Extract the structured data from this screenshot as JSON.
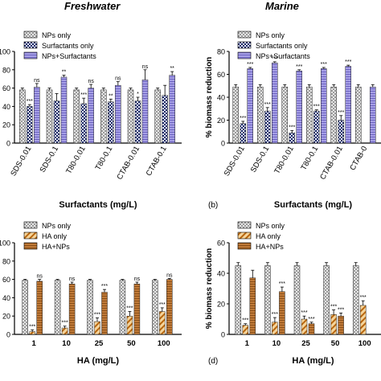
{
  "column_titles": {
    "left": "Freshwater",
    "right": "Marine"
  },
  "colors": {
    "fill_a": "#cfcfcf",
    "fill_b_dark": "#2a3a7a",
    "fill_c": "#8c84d6",
    "fill_d_dark": "#c0702a",
    "fill_e": "#b06a2e"
  },
  "chart_data": [
    {
      "type": "bar",
      "panel": "a",
      "ylabel": "",
      "xlabel": "Surfactants (mg/L)",
      "panel_label": "",
      "categories": [
        "SDS-0.01",
        "SDS-0.1",
        "T80-0.01",
        "T80-0.1",
        "CTAB-0.01",
        "CTAB-0.1"
      ],
      "ylim": [
        0,
        100
      ],
      "yticks": [
        "0",
        "20",
        "40",
        "60",
        "80",
        "100"
      ],
      "legend": [
        "NPs only",
        "Surfactants only",
        "NPs+Surfactants"
      ],
      "series": [
        {
          "name": "NPs only",
          "values": [
            58,
            58,
            58,
            58,
            58,
            58
          ],
          "errors": [
            2,
            2,
            2,
            2,
            2,
            2
          ]
        },
        {
          "name": "Surfactants only",
          "values": [
            40,
            46,
            43,
            45,
            46,
            52
          ],
          "errors": [
            2,
            8,
            6,
            3,
            4,
            11
          ]
        },
        {
          "name": "NPs+Surfactants",
          "values": [
            61,
            72,
            60,
            63,
            69,
            74
          ],
          "errors": [
            4,
            2,
            4,
            4,
            11,
            4
          ]
        }
      ],
      "annotations": [
        [
          "",
          "***",
          "ns"
        ],
        [
          "",
          "",
          "**"
        ],
        [
          "",
          "***",
          "ns"
        ],
        [
          "",
          "**",
          "ns"
        ],
        [
          "",
          "*",
          "ns"
        ],
        [
          "",
          "",
          "**"
        ]
      ]
    },
    {
      "type": "bar",
      "panel": "b",
      "ylabel": "% biomass reduction",
      "xlabel": "Surfactants (mg/L)",
      "panel_label": "(b)",
      "categories": [
        "SDS-0.01",
        "SDS-0.1",
        "T80-0.01",
        "T80-0.1",
        "CTAB-0.01",
        "CTAB-0"
      ],
      "ylim": [
        0,
        80
      ],
      "yticks": [
        "0",
        "20",
        "40",
        "60",
        "80"
      ],
      "legend": [
        "NPs only",
        "Surfactants only",
        "NPs+Surfactants"
      ],
      "series": [
        {
          "name": "NPs only",
          "values": [
            49,
            49,
            49,
            49,
            49,
            49
          ],
          "errors": [
            2,
            2,
            2,
            2,
            2,
            2
          ]
        },
        {
          "name": "Surfactants only",
          "values": [
            17,
            28,
            9,
            28,
            20,
            null
          ],
          "errors": [
            2,
            3,
            2,
            1,
            4,
            null
          ]
        },
        {
          "name": "NPs+Surfactants",
          "values": [
            65,
            70,
            63,
            65,
            67,
            49
          ],
          "errors": [
            1,
            1,
            1,
            1,
            1,
            2
          ]
        }
      ],
      "annotations": [
        [
          "",
          "***",
          "***"
        ],
        [
          "",
          "***",
          "***"
        ],
        [
          "",
          "***",
          "***"
        ],
        [
          "",
          "***",
          "***"
        ],
        [
          "",
          "***",
          "***"
        ],
        [
          "",
          "",
          ""
        ]
      ]
    },
    {
      "type": "bar",
      "panel": "c",
      "ylabel": "",
      "xlabel": "HA (mg/L)",
      "panel_label": "",
      "categories": [
        "1",
        "10",
        "25",
        "50",
        "100"
      ],
      "ylim": [
        0,
        100
      ],
      "yticks": [
        "0",
        "20",
        "40",
        "60",
        "80",
        "100"
      ],
      "legend": [
        "NPs only",
        "HA only",
        "HA+NPs"
      ],
      "series": [
        {
          "name": "NPs only",
          "values": [
            59,
            59,
            59,
            59,
            59
          ],
          "errors": [
            1,
            1,
            1,
            1,
            1
          ]
        },
        {
          "name": "HA only",
          "values": [
            3,
            7,
            14,
            20,
            25
          ],
          "errors": [
            2,
            2,
            4,
            5,
            4
          ]
        },
        {
          "name": "HA+NPs",
          "values": [
            58,
            55,
            46,
            55,
            60
          ],
          "errors": [
            2,
            2,
            3,
            2,
            1
          ]
        }
      ],
      "annotations": [
        [
          "",
          "***",
          "ns"
        ],
        [
          "",
          "***",
          "ns"
        ],
        [
          "",
          "***",
          "***"
        ],
        [
          "",
          "***",
          "ns"
        ],
        [
          "",
          "***",
          "ns"
        ]
      ]
    },
    {
      "type": "bar",
      "panel": "d",
      "ylabel": "% biomass reduction",
      "xlabel": "HA (mg/L)",
      "panel_label": "(d)",
      "categories": [
        "1",
        "10",
        "25",
        "50",
        "100"
      ],
      "ylim": [
        0,
        60
      ],
      "yticks": [
        "0",
        "20",
        "40",
        "60"
      ],
      "legend": [
        "NPs only",
        "HA only",
        "HA+NPs"
      ],
      "series": [
        {
          "name": "NPs only",
          "values": [
            45,
            45,
            45,
            45,
            45
          ],
          "errors": [
            2,
            2,
            2,
            2,
            2
          ]
        },
        {
          "name": "HA only",
          "values": [
            6,
            8,
            10,
            13,
            19
          ],
          "errors": [
            1,
            3,
            2,
            3,
            3
          ]
        },
        {
          "name": "HA+NPs",
          "values": [
            37,
            28,
            7,
            12,
            null
          ],
          "errors": [
            5,
            3,
            1,
            2,
            null
          ]
        }
      ],
      "annotations": [
        [
          "",
          "***",
          ""
        ],
        [
          "",
          "***",
          "***"
        ],
        [
          "",
          "***",
          "***"
        ],
        [
          "",
          "***",
          "***"
        ],
        [
          "",
          "***",
          ""
        ]
      ]
    }
  ]
}
